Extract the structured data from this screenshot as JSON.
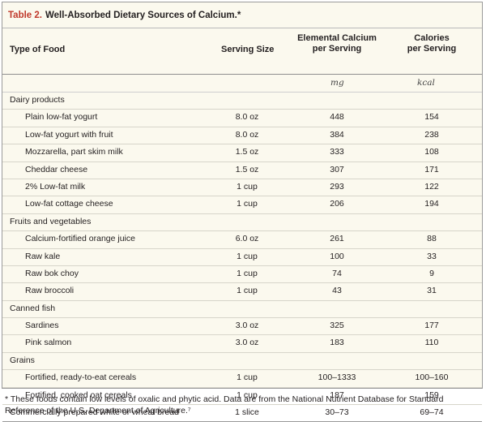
{
  "table": {
    "title_number": "Table 2.",
    "title_text": "Well-Absorbed Dietary Sources of Calcium.*",
    "headers": {
      "food": "Type of Food",
      "serving": "Serving Size",
      "calcium_line1": "Elemental Calcium",
      "calcium_line2": "per Serving",
      "calories_line1": "Calories",
      "calories_line2": "per Serving"
    },
    "units": {
      "calcium": "mg",
      "calories": "kcal"
    },
    "rows": [
      {
        "food": "Dairy products",
        "serving": "",
        "calcium": "",
        "calories": ""
      },
      {
        "food": "Plain low-fat yogurt",
        "serving": "8.0 oz",
        "calcium": "448",
        "calories": "154"
      },
      {
        "food": "Low-fat yogurt with fruit",
        "serving": "8.0 oz",
        "calcium": "384",
        "calories": "238"
      },
      {
        "food": "Mozzarella, part skim milk",
        "serving": "1.5 oz",
        "calcium": "333",
        "calories": "108"
      },
      {
        "food": "Cheddar cheese",
        "serving": "1.5 oz",
        "calcium": "307",
        "calories": "171"
      },
      {
        "food": "2% Low-fat milk",
        "serving": "1 cup",
        "calcium": "293",
        "calories": "122"
      },
      {
        "food": "Low-fat cottage cheese",
        "serving": "1 cup",
        "calcium": "206",
        "calories": "194"
      },
      {
        "food": "Fruits and vegetables",
        "serving": "",
        "calcium": "",
        "calories": ""
      },
      {
        "food": "Calcium-fortified orange juice",
        "serving": "6.0 oz",
        "calcium": "261",
        "calories": "88"
      },
      {
        "food": "Raw kale",
        "serving": "1 cup",
        "calcium": "100",
        "calories": "33"
      },
      {
        "food": "Raw bok choy",
        "serving": "1 cup",
        "calcium": "74",
        "calories": "9"
      },
      {
        "food": "Raw broccoli",
        "serving": "1 cup",
        "calcium": "43",
        "calories": "31"
      },
      {
        "food": "Canned fish",
        "serving": "",
        "calcium": "",
        "calories": ""
      },
      {
        "food": "Sardines",
        "serving": "3.0 oz",
        "calcium": "325",
        "calories": "177"
      },
      {
        "food": "Pink salmon",
        "serving": "3.0 oz",
        "calcium": "183",
        "calories": "110"
      },
      {
        "food": "Grains",
        "serving": "",
        "calcium": "",
        "calories": ""
      },
      {
        "food": "Fortified, ready-to-eat cereals",
        "serving": "1 cup",
        "calcium": "100–1333",
        "calories": "100–160"
      },
      {
        "food": "Fortified, cooked oat cereals",
        "serving": "1 cup",
        "calcium": "187",
        "calories": "159"
      },
      {
        "food": "Commercially prepared white or wheat bread",
        "serving": "1 slice",
        "calcium": "30–73",
        "calories": "69–74"
      }
    ],
    "footnote": "* These foods contain low levels of oxalic and phytic acid. Data are from the National Nutrient Database for Standard Reference of the U.S. Department of Agriculture.⁷"
  },
  "colors": {
    "title_accent": "#c0392b",
    "table_background": "#fbf9ee"
  }
}
